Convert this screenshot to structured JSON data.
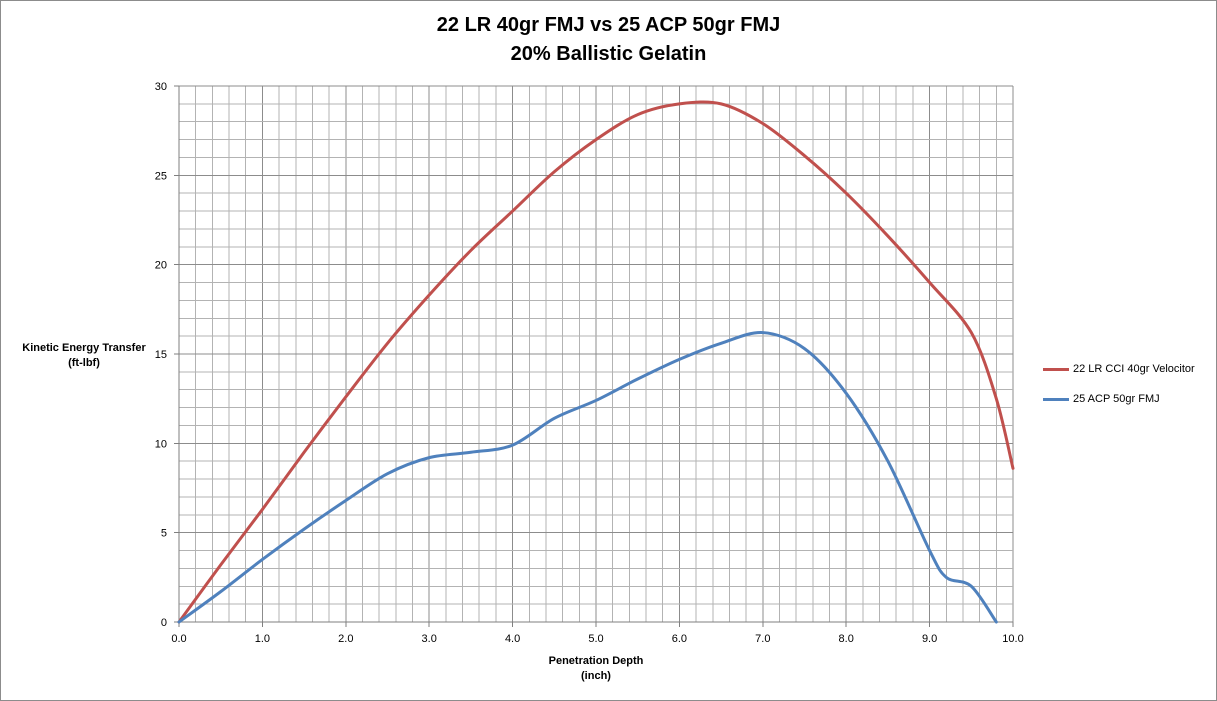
{
  "chart_data": {
    "type": "line",
    "title_line1": "22 LR 40gr FMJ vs 25 ACP 50gr FMJ",
    "title_line2": "20% Ballistic Gelatin",
    "ylabel_line1": "Kinetic Energy Transfer",
    "ylabel_line2": "(ft-lbf)",
    "xlabel_line1": "Penetration Depth",
    "xlabel_line2": "(inch)",
    "xlim": [
      0,
      10
    ],
    "ylim": [
      0,
      30
    ],
    "x_ticks": [
      "0.0",
      "1.0",
      "2.0",
      "3.0",
      "4.0",
      "5.0",
      "6.0",
      "7.0",
      "8.0",
      "9.0",
      "10.0"
    ],
    "y_ticks": [
      "0",
      "5",
      "10",
      "15",
      "20",
      "25",
      "30"
    ],
    "grid": "on (minor every 0.2 inch and 1 ft-lbf)",
    "legend_position": "right",
    "series": [
      {
        "name": "22 LR CCI 40gr Velocitor",
        "color": "#c0504d",
        "x": [
          0,
          0.5,
          1.0,
          1.5,
          2.0,
          2.5,
          3.0,
          3.5,
          4.0,
          4.5,
          5.0,
          5.5,
          6.0,
          6.5,
          7.0,
          7.5,
          8.0,
          8.5,
          9.0,
          9.5,
          9.8,
          10.0
        ],
        "y": [
          0,
          3.2,
          6.3,
          9.5,
          12.6,
          15.6,
          18.3,
          20.8,
          23.0,
          25.2,
          27.0,
          28.4,
          29.0,
          29.0,
          27.9,
          26.1,
          24.0,
          21.6,
          19.0,
          16.2,
          12.5,
          8.6
        ]
      },
      {
        "name": "25 ACP 50gr FMJ",
        "color": "#4f81bd",
        "x": [
          0,
          0.5,
          1.0,
          1.5,
          2.0,
          2.5,
          3.0,
          3.5,
          4.0,
          4.5,
          5.0,
          5.5,
          6.0,
          6.5,
          7.0,
          7.5,
          8.0,
          8.5,
          9.0,
          9.2,
          9.5,
          9.8
        ],
        "y": [
          0,
          1.7,
          3.5,
          5.2,
          6.8,
          8.3,
          9.2,
          9.5,
          9.9,
          11.4,
          12.4,
          13.6,
          14.7,
          15.6,
          16.2,
          15.3,
          12.8,
          9.0,
          4.0,
          2.5,
          2.0,
          0
        ]
      }
    ]
  }
}
